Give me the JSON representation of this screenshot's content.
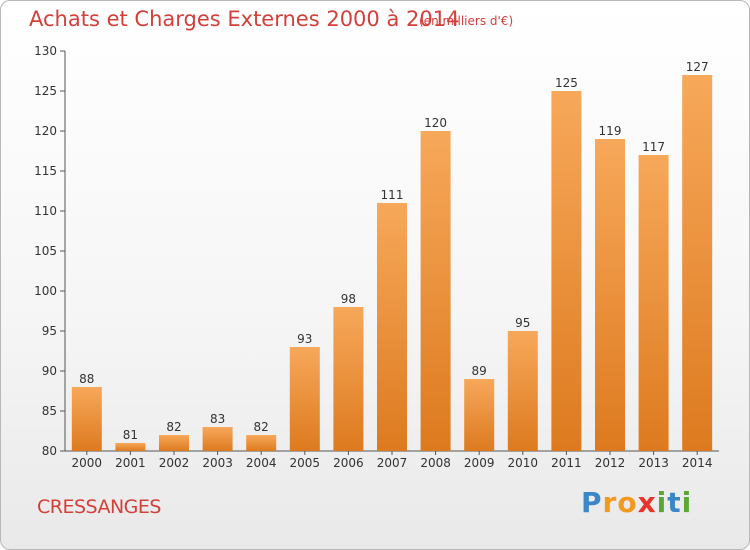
{
  "title": "Achats et Charges Externes 2000 à 2014",
  "subtitle": "(en milliers d'€)",
  "town": "CRESSANGES",
  "logo": {
    "letters": [
      "P",
      "r",
      "o",
      "x",
      "i",
      "t",
      "i"
    ],
    "colors": [
      "#3a86c8",
      "#f39a1e",
      "#f39a1e",
      "#e8322b",
      "#5aa832",
      "#3a86c8",
      "#5aa832"
    ]
  },
  "colors": {
    "title": "#d3403a",
    "bar_top": "#f7a85a",
    "bar_bottom": "#dd7a1f",
    "axis": "#555555"
  },
  "chart_data": {
    "type": "bar",
    "categories": [
      "2000",
      "2001",
      "2002",
      "2003",
      "2004",
      "2005",
      "2006",
      "2007",
      "2008",
      "2009",
      "2010",
      "2011",
      "2012",
      "2013",
      "2014"
    ],
    "values": [
      88,
      81,
      82,
      83,
      82,
      93,
      98,
      111,
      120,
      89,
      95,
      125,
      119,
      117,
      127
    ],
    "title": "Achats et Charges Externes 2000 à 2014",
    "xlabel": "",
    "ylabel": "",
    "ylim": [
      80,
      130
    ],
    "yticks": [
      80,
      85,
      90,
      95,
      100,
      105,
      110,
      115,
      120,
      125,
      130
    ],
    "grid": false,
    "data_labels": true
  }
}
